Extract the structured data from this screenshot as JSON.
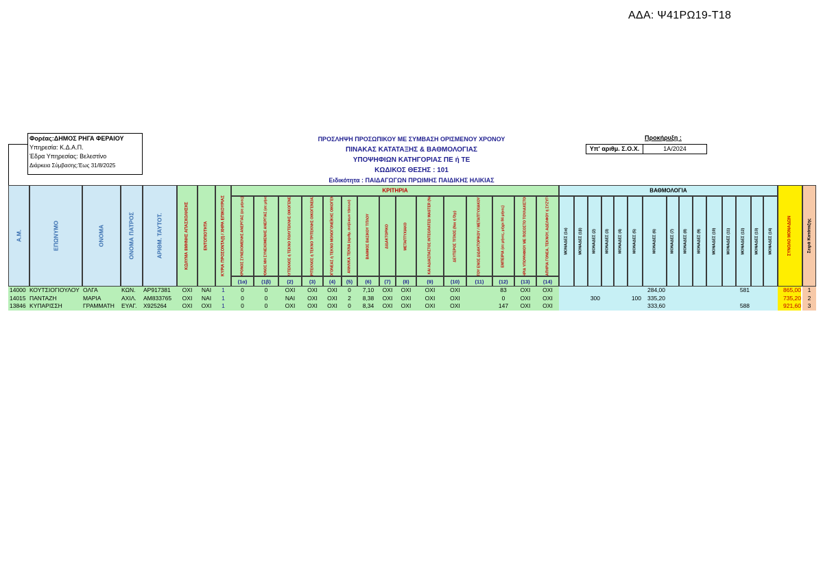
{
  "ada": "ΑΔΑ: Ψ41ΡΩ19-Τ18",
  "info": {
    "foreas": "Φορέας:ΔΗΜΟΣ ΡΗΓΑ ΦΕΡΑΙΟΥ",
    "ypiresia": "Υπηρεσία: Κ.Δ.Α.Π.",
    "edra": "Έδρα Υπηρεσίας: Βελεστίνο",
    "diarkeia": "Διάρκεια Σύμβασης:Έως 31/8/2025"
  },
  "titles": {
    "line1": "ΠΡΟΣΛΗΨΗ ΠΡΟΣΩΠΙΚΟΥ ΜΕ ΣΥΜΒΑΣΗ ΟΡΙΣΜΕΝΟΥ ΧΡΟΝΟΥ",
    "line2": "ΠΙΝΑΚΑΣ ΚΑΤΑΤΑΞΗΣ & ΒΑΘΜΟΛΟΓΙΑΣ",
    "line3": "ΥΠΟΨΗΦΙΩΝ ΚΑΤΗΓΟΡΙΑΣ ΠΕ ή ΤΕ",
    "line4": "ΚΩΔΙΚΟΣ ΘΕΣΗΣ : 101",
    "line5": "Ειδικότητα : ΠΑΙΔΑΓΩΓΩΝ ΠΡΩΙΜΗΣ ΠΑΙΔΙΚΗΣ ΗΛΙΚΙΑΣ"
  },
  "prokirixi": {
    "label": "Προκήρυξη :",
    "sox_label": "Υπ' αριθμ. Σ.Ο.Χ.",
    "sox_value": "1Α/2024"
  },
  "groups": {
    "kritiria": "ΚΡΙΤΗΡΙΑ",
    "vathmologia": "ΒΑΘΜΟΛΟΓΙΑ"
  },
  "headers": {
    "am": "Α.Μ.",
    "eponymo": "ΕΠΩΝΥΜΟ",
    "onoma": "ΟΝΟΜΑ",
    "patros": "ΟΝΟΜΑ ΠΑΤΡΟΣ",
    "taut": "ΑΡΙΘΜ. ΤΑΥΤΟΤ.",
    "kolyma": "ΚΩΛΥΜΑ 8ΜΗΝΗΣ ΑΠΑΣΧΟΛΗΣΗΣ",
    "entopiotita": "ΕΝΤΟΠΙΟΤΗΤΑ",
    "kyria": "ΚΥΡΙΑ ΠΡΟΣΟΝΤΑ(Ι) / ΧΗΡΑ ΕΠΙΚΟΥΡΙΑΣ",
    "krit": [
      {
        "label": "ΧΡΟΝΟΣ ΣΥΝΕΧΟΜΕΝΗΣ ΑΝΕΡΓΙΑΣ (σε μήνες)",
        "num": "(1α)"
      },
      {
        "label": "ΧΡΟΝΟΣ ΜΗ ΣΥΝΕΧΟΜΕΝΗΣ ΑΝΕΡΓΙΑΣ (σε μήνες)",
        "num": "(1β)"
      },
      {
        "label": "ΠΟΛΥΤΕΚΝΟΣ ή ΤΕΚΝΟ ΠΟΛΥΤΕΚΝΗΣ ΟΙΚΟΓΕΝΕΙΑΣ",
        "num": "(2)"
      },
      {
        "label": "ΤΡΙΤΕΚΝΟΣ ή ΤΕΚΝΟ ΤΡΙΤΕΚΝΗΣ ΟΙΚΟΓΕΝΕΙΑΣ",
        "num": "(3)"
      },
      {
        "label": "ΜΟΝΟΓΟΝΕΑΣ ή ΤΕΚΝΟ ΜΟΝΟΓΟΝΕΪΚΗΣ ΟΙΚΟΓΕΝΕΙΑΣ",
        "num": "(4)"
      },
      {
        "label": "ΑΝΗΛΙΚΑ ΤΕΚΝΑ (αριθμ. ανήλικων τέκνων)",
        "num": "(5)"
      },
      {
        "label": "ΒΑΘΜΟΣ ΒΑΣΙΚΟΥ ΤΙΤΛΟΥ",
        "num": "(6)"
      },
      {
        "label": "ΔΙΔΑΚΤΟΡΙΚΟ",
        "num": "(7)"
      },
      {
        "label": "ΜΕΤΑΠΤΥΧΙΑΚΟ",
        "num": "(8)"
      },
      {
        "label": "ΕΝΙΑΙΟΣ ΚΑΙ ΑΔΙΑΣΠΑΣΤΟΣ INTEGRATED MASTER (Ναι ή Όχι)",
        "num": "(9)"
      },
      {
        "label": "ΔΕΥΤΕΡΟΣ ΤΙΤΛΟΣ (Ναι ή Όχι)",
        "num": "(10)"
      },
      {
        "label": "ΠΕΡΙΣΣΟΤΕΡΑ ΤΟΥ ΕΝΟΣ ΔΙΔΑΚΤΟΡΙΚΟΥ / ΜΕΤΑΠΤΥΧΙΑΚΟΥ / INTEGRATED",
        "num": "(11)"
      },
      {
        "label": "ΕΜΠΕΙΡΙΑ (σε μήνες, μέχρι 84 μήνες)",
        "num": "(12)"
      },
      {
        "label": "ΑΝΑΠΗΡΙΑ ΥΠΟΨΗΦΙΟΥ ΜΕ ΠΟΣΟΣΤΟ ΤΟΥΛΑΧΙΣΤΟΝ 50%",
        "num": "(13)"
      },
      {
        "label": "ΑΝΑΠΗΡΙΑ ΓΟΝΕΑ, ΤΕΚΝΟΥ, ΑΔΕΛΦΟΥ ή ΣΥΖΥΓΟΥ",
        "num": "(14)"
      }
    ],
    "monades": [
      "ΜΟΝΑΔΕΣ (1α)",
      "ΜΟΝΑΔΕΣ (1β)",
      "ΜΟΝΑΔΕΣ (2)",
      "ΜΟΝΑΔΕΣ (3)",
      "ΜΟΝΑΔΕΣ (4)",
      "ΜΟΝΑΔΕΣ (5)",
      "ΜΟΝΑΔΕΣ (6)",
      "ΜΟΝΑΔΕΣ (7)",
      "ΜΟΝΑΔΕΣ (8)",
      "ΜΟΝΑΔΕΣ (9)",
      "ΜΟΝΑΔΕΣ (10)",
      "ΜΟΝΑΔΕΣ (11)",
      "ΜΟΝΑΔΕΣ (12)",
      "ΜΟΝΑΔΕΣ (13)",
      "ΜΟΝΑΔΕΣ (14)"
    ],
    "synolo": "ΣΥΝΟΛΟ ΜΟΝΑΔΩΝ",
    "seira": "Σειρά Κατάταξης"
  },
  "rows": [
    {
      "am": "14000",
      "eponymo": "ΚΟΥΤΣΙΟΓΙΟΥΛΟΥ",
      "onoma": "ΟΛΓΑ",
      "patros": "ΚΩΝ.",
      "taut": "ΑΡ917381",
      "kolyma": "ΟΧΙ",
      "entopiotita": "ΝΑΙ",
      "kyria": "1",
      "krit": [
        "0",
        "0",
        "ΟΧΙ",
        "ΟΧΙ",
        "ΟΧΙ",
        "0",
        "7,10",
        "ΟΧΙ",
        "ΟΧΙ",
        "ΟΧΙ",
        "ΟΧΙ",
        "",
        "83",
        "ΟΧΙ",
        "ΟΧΙ"
      ],
      "monades": [
        "",
        "",
        "",
        "",
        "",
        "",
        "284,00",
        "",
        "",
        "",
        "",
        "",
        "581",
        "",
        ""
      ],
      "synolo": "865,00",
      "seira": "1"
    },
    {
      "am": "14015",
      "eponymo": "ΠΑΝΤΑΖΗ",
      "onoma": "ΜΑΡΙΑ",
      "patros": "ΑΧΙΛ.",
      "taut": "ΑΜ833765",
      "kolyma": "ΟΧΙ",
      "entopiotita": "ΝΑΙ",
      "kyria": "1",
      "krit": [
        "0",
        "0",
        "ΝΑΙ",
        "ΟΧΙ",
        "ΟΧΙ",
        "2",
        "8,38",
        "ΟΧΙ",
        "ΟΧΙ",
        "ΟΧΙ",
        "ΟΧΙ",
        "",
        "0",
        "ΟΧΙ",
        "ΟΧΙ"
      ],
      "monades": [
        "",
        "",
        "300",
        "",
        "",
        "100",
        "335,20",
        "",
        "",
        "",
        "",
        "",
        "",
        "",
        ""
      ],
      "synolo": "735,20",
      "seira": "2"
    },
    {
      "am": "13846",
      "eponymo": "ΚΥΠΑΡΙΣΣΗ",
      "onoma": "ΓΡΑΜΜΑΤΗ",
      "patros": "ΕΥΑΓ.",
      "taut": "Χ925264",
      "kolyma": "ΟΧΙ",
      "entopiotita": "ΟΧΙ",
      "kyria": "1",
      "krit": [
        "0",
        "0",
        "ΟΧΙ",
        "ΟΧΙ",
        "ΟΧΙ",
        "0",
        "8,34",
        "ΟΧΙ",
        "ΟΧΙ",
        "ΟΧΙ",
        "ΟΧΙ",
        "",
        "147",
        "ΟΧΙ",
        "ΟΧΙ"
      ],
      "monades": [
        "",
        "",
        "",
        "",
        "",
        "",
        "333,60",
        "",
        "",
        "",
        "",
        "",
        "588",
        "",
        ""
      ],
      "synolo": "921,60",
      "seira": "3"
    }
  ],
  "colors": {
    "left_header_bg": "#cfe8f5",
    "left_header_text": "#3a6fb0",
    "kritiria_bg": "#b8efb8",
    "vathmologia_bg": "#c7f0f5",
    "synolo_bg": "#ffee00",
    "seira_bg": "#f7c9a8",
    "red_text": "#c00000",
    "title_text": "#1f1f8f"
  }
}
